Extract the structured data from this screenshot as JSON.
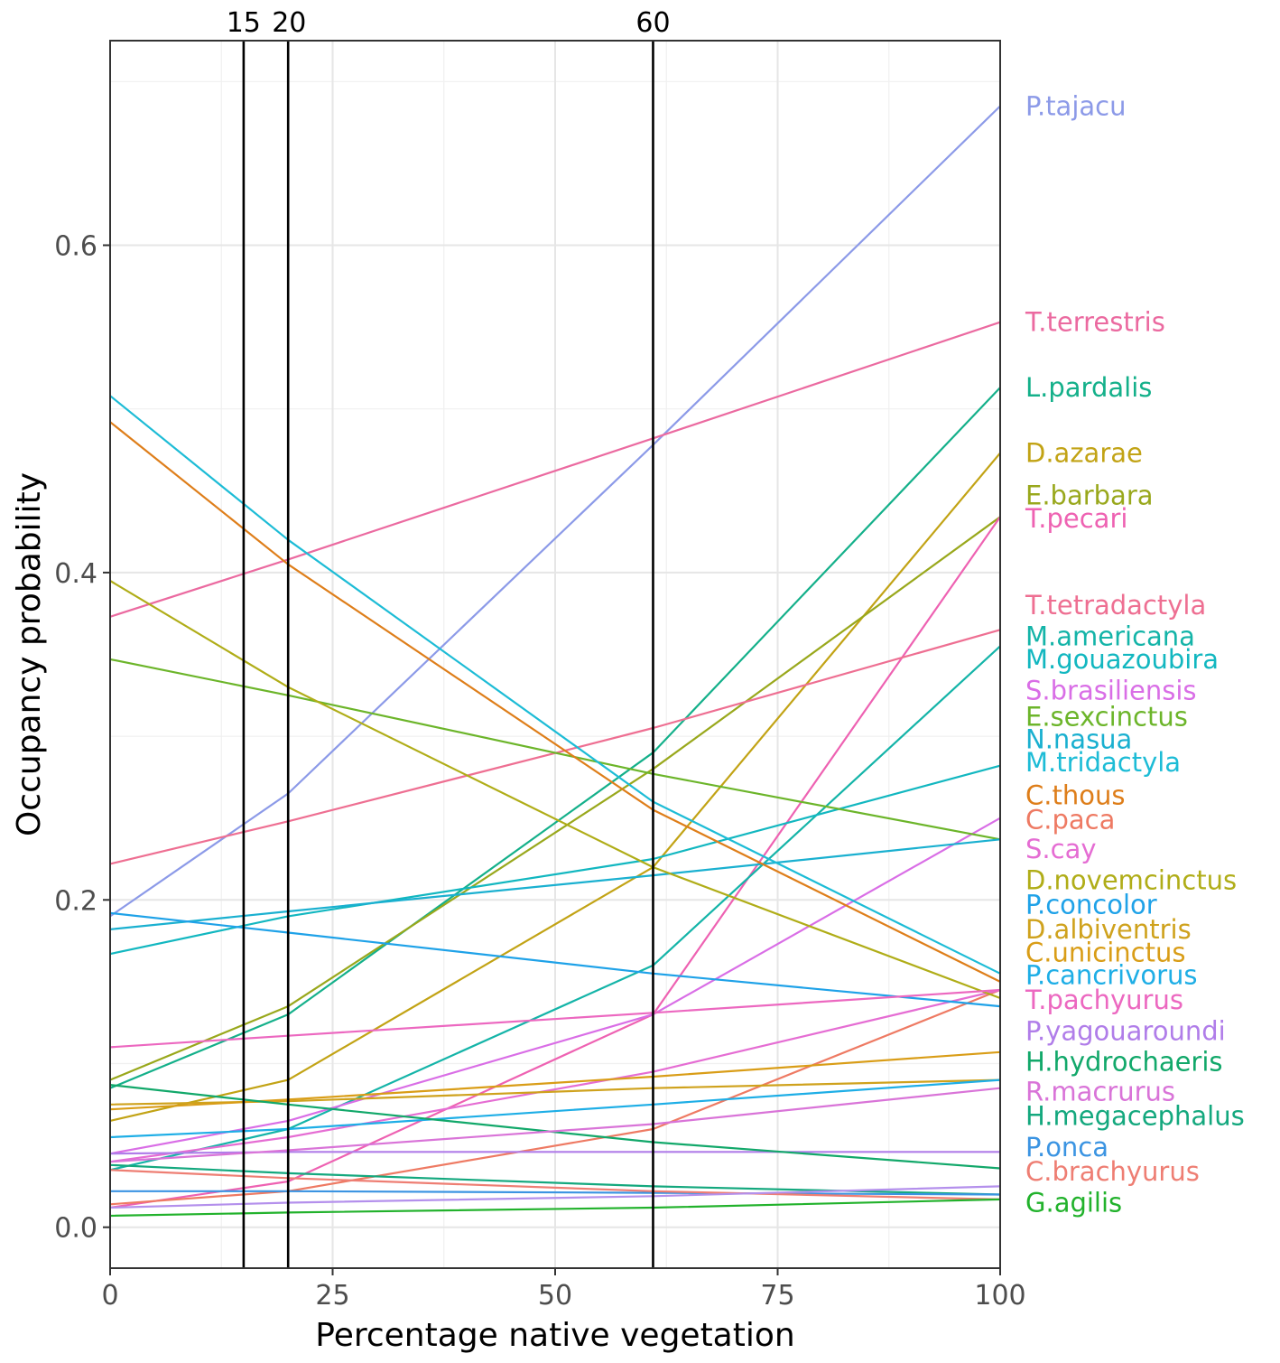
{
  "chart_data": {
    "type": "line",
    "title": "",
    "xlabel": "Percentage native vegetation",
    "ylabel": "Occupancy probability",
    "xlim": [
      0,
      100
    ],
    "ylim": [
      -0.025,
      0.725
    ],
    "xticks": [
      0,
      25,
      50,
      75,
      100
    ],
    "xtick_labels": [
      "0",
      "25",
      "50",
      "75",
      "100"
    ],
    "yticks": [
      0.0,
      0.2,
      0.4,
      0.6
    ],
    "ytick_labels": [
      "0.0",
      "0.2",
      "0.4",
      "0.6"
    ],
    "grid": true,
    "reference_lines": [
      {
        "x": 15,
        "label": "15"
      },
      {
        "x": 20,
        "label": "20"
      },
      {
        "x": 61,
        "label": "60"
      }
    ],
    "series": [
      {
        "name": "P.tajacu",
        "color": "#8c9ae8",
        "x": [
          0,
          20,
          61,
          100
        ],
        "values": [
          0.19,
          0.265,
          0.478,
          0.685
        ],
        "label_value": 0.685
      },
      {
        "name": "T.terrestris",
        "color": "#eb6aa0",
        "x": [
          0,
          20,
          61,
          100
        ],
        "values": [
          0.373,
          0.408,
          0.482,
          0.553
        ],
        "label_value": 0.553
      },
      {
        "name": "L.pardalis",
        "color": "#14b08a",
        "x": [
          0,
          20,
          61,
          100
        ],
        "values": [
          0.085,
          0.13,
          0.29,
          0.513
        ],
        "label_value": 0.513
      },
      {
        "name": "D.azarae",
        "color": "#c2a315",
        "x": [
          0,
          20,
          61,
          100
        ],
        "values": [
          0.065,
          0.09,
          0.22,
          0.473
        ],
        "label_value": 0.473
      },
      {
        "name": "E.barbara",
        "color": "#99a81c",
        "x": [
          0,
          20,
          61,
          100
        ],
        "values": [
          0.09,
          0.135,
          0.28,
          0.434
        ],
        "label_value": 0.447
      },
      {
        "name": "T.pecari",
        "color": "#ee62b2",
        "x": [
          0,
          20,
          61,
          100
        ],
        "values": [
          0.012,
          0.028,
          0.13,
          0.434
        ],
        "label_value": 0.433
      },
      {
        "name": "T.tetradactyla",
        "color": "#ee6f92",
        "x": [
          0,
          20,
          61,
          100
        ],
        "values": [
          0.222,
          0.248,
          0.305,
          0.365
        ],
        "label_value": 0.38
      },
      {
        "name": "M.americana",
        "color": "#14b4a8",
        "x": [
          0,
          20,
          61,
          100
        ],
        "values": [
          0.035,
          0.06,
          0.16,
          0.355
        ],
        "label_value": 0.361
      },
      {
        "name": "M.gouazoubira",
        "color": "#12b7c0",
        "x": [
          0,
          20,
          61,
          100
        ],
        "values": [
          0.167,
          0.19,
          0.225,
          0.282
        ],
        "label_value": 0.347
      },
      {
        "name": "S.brasiliensis",
        "color": "#d96ee6",
        "x": [
          0,
          20,
          61,
          100
        ],
        "values": [
          0.045,
          0.065,
          0.13,
          0.25
        ],
        "label_value": 0.328
      },
      {
        "name": "E.sexcinctus",
        "color": "#6cb52a",
        "x": [
          0,
          20,
          61,
          100
        ],
        "values": [
          0.347,
          0.325,
          0.277,
          0.237
        ],
        "label_value": 0.312
      },
      {
        "name": "N.nasua",
        "color": "#1ab0d0",
        "x": [
          0,
          20,
          61,
          100
        ],
        "values": [
          0.182,
          0.193,
          0.215,
          0.237
        ],
        "label_value": 0.298
      },
      {
        "name": "M.tridactyla",
        "color": "#1dbcd6",
        "x": [
          0,
          20,
          61,
          100
        ],
        "values": [
          0.508,
          0.42,
          0.26,
          0.155
        ],
        "label_value": 0.284
      },
      {
        "name": "C.thous",
        "color": "#de7e1a",
        "x": [
          0,
          20,
          61,
          100
        ],
        "values": [
          0.492,
          0.405,
          0.255,
          0.15
        ],
        "label_value": 0.264
      },
      {
        "name": "C.paca",
        "color": "#ee7a63",
        "x": [
          0,
          20,
          61,
          100
        ],
        "values": [
          0.014,
          0.022,
          0.06,
          0.145
        ],
        "label_value": 0.249
      },
      {
        "name": "S.cay",
        "color": "#e56dd3",
        "x": [
          0,
          20,
          61,
          100
        ],
        "values": [
          0.04,
          0.055,
          0.095,
          0.145
        ],
        "label_value": 0.231
      },
      {
        "name": "D.novemcinctus",
        "color": "#b0ad18",
        "x": [
          0,
          20,
          61,
          100
        ],
        "values": [
          0.395,
          0.33,
          0.22,
          0.14
        ],
        "label_value": 0.212
      },
      {
        "name": "P.concolor",
        "color": "#1fa2e8",
        "x": [
          0,
          20,
          61,
          100
        ],
        "values": [
          0.192,
          0.18,
          0.155,
          0.135
        ],
        "label_value": 0.197
      },
      {
        "name": "D.albiventris",
        "color": "#cfa21d",
        "x": [
          0,
          20,
          61,
          100
        ],
        "values": [
          0.075,
          0.077,
          0.085,
          0.09
        ],
        "label_value": 0.182
      },
      {
        "name": "C.unicinctus",
        "color": "#d99d17",
        "x": [
          0,
          20,
          61,
          100
        ],
        "values": [
          0.072,
          0.078,
          0.092,
          0.107
        ],
        "label_value": 0.168
      },
      {
        "name": "P.cancrivorus",
        "color": "#1eaee6",
        "x": [
          0,
          20,
          61,
          100
        ],
        "values": [
          0.055,
          0.06,
          0.075,
          0.09
        ],
        "label_value": 0.154
      },
      {
        "name": "T.pachyurus",
        "color": "#ec68c0",
        "x": [
          0,
          20,
          61,
          100
        ],
        "values": [
          0.11,
          0.117,
          0.131,
          0.145
        ],
        "label_value": 0.139
      },
      {
        "name": "P.yagouaroundi",
        "color": "#b07de9",
        "x": [
          0,
          20,
          61,
          100
        ],
        "values": [
          0.045,
          0.046,
          0.046,
          0.046
        ],
        "label_value": 0.12
      },
      {
        "name": "H.hydrochaeris",
        "color": "#12a86a",
        "x": [
          0,
          20,
          61,
          100
        ],
        "values": [
          0.087,
          0.075,
          0.052,
          0.036
        ],
        "label_value": 0.101
      },
      {
        "name": "R.macrurus",
        "color": "#d974d8",
        "x": [
          0,
          20,
          61,
          100
        ],
        "values": [
          0.04,
          0.047,
          0.063,
          0.085
        ],
        "label_value": 0.083
      },
      {
        "name": "H.megacephalus",
        "color": "#14a87e",
        "x": [
          0,
          20,
          61,
          100
        ],
        "values": [
          0.038,
          0.033,
          0.025,
          0.02
        ],
        "label_value": 0.068
      },
      {
        "name": "P.onca",
        "color": "#3b94e2",
        "x": [
          0,
          20,
          61,
          100
        ],
        "values": [
          0.022,
          0.022,
          0.021,
          0.02
        ],
        "label_value": 0.049
      },
      {
        "name": "C.brachyurus",
        "color": "#ee7e73",
        "x": [
          0,
          20,
          61,
          100
        ],
        "values": [
          0.035,
          0.03,
          0.022,
          0.017
        ],
        "label_value": 0.034
      },
      {
        "name": "G.agilis",
        "color": "#22b22c",
        "x": [
          0,
          20,
          61,
          100
        ],
        "values": [
          0.007,
          0.009,
          0.012,
          0.017
        ],
        "label_value": 0.015
      },
      {
        "name": "",
        "color": "#b490ec",
        "x": [
          0,
          20,
          61,
          100
        ],
        "values": [
          0.012,
          0.015,
          0.019,
          0.025
        ],
        "label_value": null
      }
    ]
  }
}
